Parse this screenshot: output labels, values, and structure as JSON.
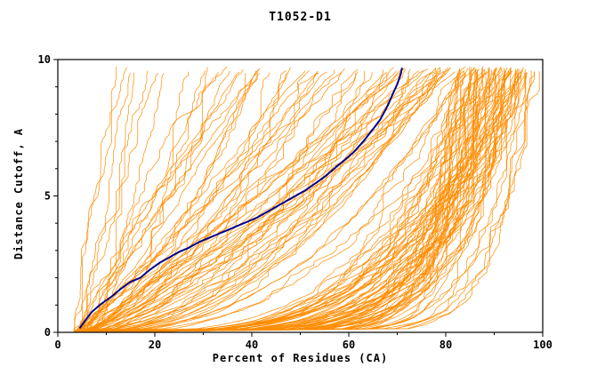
{
  "chart_data": {
    "type": "line",
    "title": "T1052-D1",
    "xlabel": "Percent of Residues (CA)",
    "ylabel": "Distance Cutoff, A",
    "xlim": [
      0,
      100
    ],
    "ylim": [
      0,
      10
    ],
    "x_ticks": [
      0,
      20,
      40,
      60,
      80,
      100
    ],
    "x_minor_step": 10,
    "y_ticks": [
      0,
      5,
      10
    ],
    "y_minor_step": 1,
    "grid": false,
    "legend": null,
    "colors": {
      "ensemble": "#FF8C00",
      "reference": "#00008B",
      "axis": "#000000",
      "background": "#FFFFFF"
    },
    "series": [
      {
        "name": "reference-model",
        "role": "highlight",
        "color": "#00008B",
        "stroke_width": 2,
        "points": [
          [
            4.5,
            0.15
          ],
          [
            5.5,
            0.4
          ],
          [
            7,
            0.75
          ],
          [
            9,
            1.05
          ],
          [
            11,
            1.3
          ],
          [
            13,
            1.6
          ],
          [
            15,
            1.85
          ],
          [
            17,
            2.0
          ],
          [
            19,
            2.3
          ],
          [
            21,
            2.55
          ],
          [
            23,
            2.75
          ],
          [
            25,
            2.95
          ],
          [
            27,
            3.1
          ],
          [
            29,
            3.3
          ],
          [
            31,
            3.45
          ],
          [
            33,
            3.6
          ],
          [
            35,
            3.75
          ],
          [
            37,
            3.9
          ],
          [
            39,
            4.05
          ],
          [
            41,
            4.2
          ],
          [
            43,
            4.4
          ],
          [
            45,
            4.6
          ],
          [
            47,
            4.8
          ],
          [
            49,
            5.0
          ],
          [
            51,
            5.2
          ],
          [
            53,
            5.45
          ],
          [
            55,
            5.7
          ],
          [
            57,
            6.0
          ],
          [
            59,
            6.3
          ],
          [
            61,
            6.6
          ],
          [
            63,
            7.0
          ],
          [
            65,
            7.45
          ],
          [
            66.5,
            7.8
          ],
          [
            68,
            8.3
          ],
          [
            69,
            8.7
          ],
          [
            70,
            9.1
          ],
          [
            70.7,
            9.45
          ],
          [
            71,
            9.7
          ]
        ]
      },
      {
        "name": "model-ensemble",
        "role": "ensemble",
        "color": "#FF8C00",
        "stroke_width": 0.7,
        "count": 150,
        "seed": 1052,
        "generator": {
          "x_start": [
            3,
            6
          ],
          "y_top": [
            9.5,
            9.75
          ],
          "groups": [
            {
              "weight": 0.5,
              "x_end": [
                84,
                98.5
              ],
              "shape_exp": [
                0.06,
                0.28
              ]
            },
            {
              "weight": 0.32,
              "x_end": [
                45,
                88
              ],
              "shape_exp": [
                0.3,
                1.0
              ]
            },
            {
              "weight": 0.18,
              "x_end": [
                9,
                45
              ],
              "shape_exp": [
                0.35,
                1.3
              ]
            }
          ]
        }
      }
    ]
  }
}
